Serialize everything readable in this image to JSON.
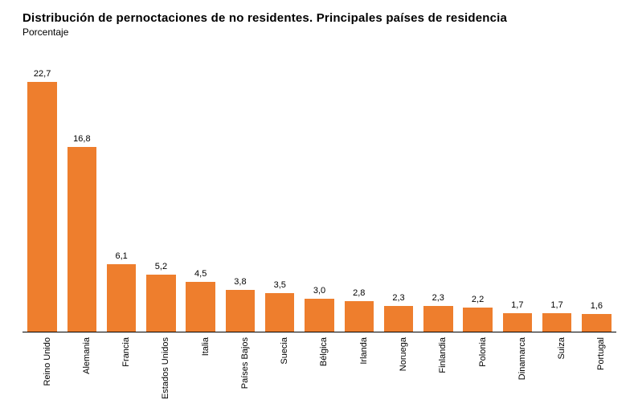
{
  "header": {
    "title": "Distribución de pernoctaciones de no residentes. Principales países de residencia",
    "subtitle": "Porcentaje",
    "title_fontsize": 15,
    "subtitle_fontsize": 12,
    "title_color": "#000000",
    "subtitle_color": "#000000"
  },
  "chart": {
    "type": "bar",
    "background_color": "#ffffff",
    "axis_line_color": "#000000",
    "bar_color": "#ee7e2d",
    "bar_width_ratio": 0.74,
    "bar_gap_ratio": 0.26,
    "ylim": [
      0,
      24
    ],
    "value_label_fontsize": 11,
    "xlabel_fontsize": 11,
    "xlabel_rotation_deg": -90,
    "value_decimal_separator": ",",
    "value_decimals": 1,
    "categories": [
      "Reino Unido",
      "Alemania",
      "Francia",
      "Estados Unidos",
      "Italia",
      "Países Bajos",
      "Suecia",
      "Bélgica",
      "Irlanda",
      "Noruega",
      "Finlandia",
      "Polonia",
      "Dinamarca",
      "Suiza",
      "Portugal"
    ],
    "values": [
      22.7,
      16.8,
      6.1,
      5.2,
      4.5,
      3.8,
      3.5,
      3.0,
      2.8,
      2.3,
      2.3,
      2.2,
      1.7,
      1.7,
      1.6
    ]
  }
}
